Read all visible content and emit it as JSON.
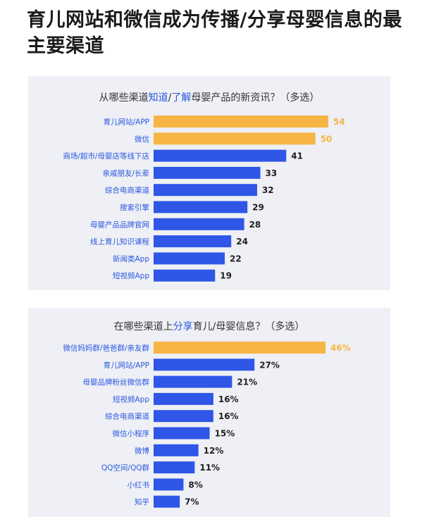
{
  "headline": "育儿网站和微信成为传播/分享母婴信息的最主要渠道",
  "colors": {
    "highlight": "#F6B544",
    "normal": "#2F56E6",
    "accent_text": "#2A56E0",
    "panel_bg": "#EEF0F5"
  },
  "chart_data": [
    {
      "type": "bar",
      "orientation": "horizontal",
      "title_parts": [
        "从哪些渠道",
        "知道",
        "/",
        "了解",
        "母婴产品的新资讯？（多选）"
      ],
      "categories": [
        "育儿网站/APP",
        "微信",
        "商场/超市/母婴店等线下店",
        "亲戚朋友/长辈",
        "综合电商渠道",
        "搜索引擎",
        "母婴产品品牌官网",
        "线上育儿知识课程",
        "新闻类App",
        "短视频App"
      ],
      "values": [
        54,
        50,
        41,
        33,
        32,
        29,
        28,
        24,
        22,
        19
      ],
      "value_labels": [
        "54",
        "50",
        "41",
        "33",
        "32",
        "29",
        "28",
        "24",
        "22",
        "19"
      ],
      "highlighted": [
        true,
        true,
        false,
        false,
        false,
        false,
        false,
        false,
        false,
        false
      ],
      "xlim": [
        0,
        54
      ],
      "grid": false
    },
    {
      "type": "bar",
      "orientation": "horizontal",
      "title_parts": [
        "在哪些渠道上",
        "分享",
        "育儿/母婴信息？（多选）"
      ],
      "categories": [
        "微信妈妈群/爸爸群/亲友群",
        "育儿网站/APP",
        "母婴品牌粉丝微信群",
        "短视频App",
        "综合电商渠道",
        "微信小程序",
        "微博",
        "QQ空间/QQ群",
        "小红书",
        "知乎"
      ],
      "values": [
        46,
        27,
        21,
        16,
        16,
        15,
        12,
        11,
        8,
        7
      ],
      "value_labels": [
        "46%",
        "27%",
        "21%",
        "16%",
        "16%",
        "15%",
        "12%",
        "11%",
        "8%",
        "7%"
      ],
      "highlighted": [
        true,
        false,
        false,
        false,
        false,
        false,
        false,
        false,
        false,
        false
      ],
      "xlim": [
        0,
        46
      ],
      "grid": false
    }
  ]
}
